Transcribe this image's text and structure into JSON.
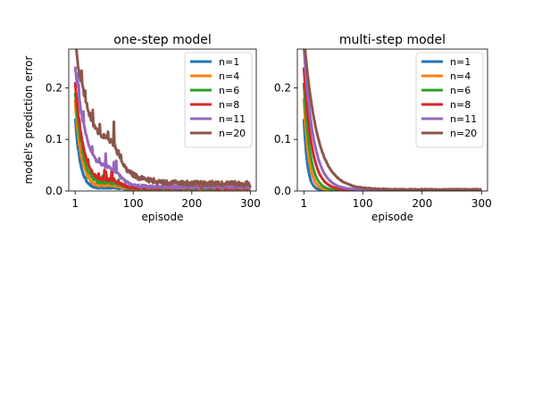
{
  "chart_data": [
    {
      "type": "line",
      "title": "one-step model",
      "xlabel": "episode",
      "ylabel": "model's prediction error",
      "xlim": [
        -10,
        310
      ],
      "ylim": [
        0,
        0.275
      ],
      "xticks": [
        1,
        100,
        200,
        300
      ],
      "xtick_labels": [
        "1",
        "100",
        "200",
        "300"
      ],
      "yticks": [
        0.0,
        0.1,
        0.2
      ],
      "ytick_labels": [
        "0.0",
        "0.1",
        "0.2"
      ],
      "grid": false,
      "legend": "top-right",
      "series": [
        {
          "name": "n=1",
          "color": "#1f77b4",
          "start": 0.14,
          "plateau": 0.003,
          "tau": 9,
          "noise": 0.001,
          "bump": 0.003
        },
        {
          "name": "n=4",
          "color": "#ff7f0e",
          "start": 0.17,
          "plateau": 0.004,
          "tau": 11,
          "noise": 0.0015,
          "bump": 0.006
        },
        {
          "name": "n=6",
          "color": "#2ca02c",
          "start": 0.19,
          "plateau": 0.005,
          "tau": 13,
          "noise": 0.002,
          "bump": 0.009
        },
        {
          "name": "n=8",
          "color": "#d62728",
          "start": 0.21,
          "plateau": 0.006,
          "tau": 15,
          "noise": 0.0025,
          "bump": 0.012
        },
        {
          "name": "n=11",
          "color": "#9467bd",
          "start": 0.24,
          "plateau": 0.008,
          "tau": 22,
          "noise": 0.003,
          "bump": 0.022
        },
        {
          "name": "n=20",
          "color": "#8c564b",
          "start": 0.28,
          "plateau": 0.014,
          "tau": 35,
          "noise": 0.005,
          "bump": 0.035
        }
      ]
    },
    {
      "type": "line",
      "title": "multi-step model",
      "xlabel": "episode",
      "ylabel": "",
      "xlim": [
        -10,
        310
      ],
      "ylim": [
        0,
        0.275
      ],
      "xticks": [
        1,
        100,
        200,
        300
      ],
      "xtick_labels": [
        "1",
        "100",
        "200",
        "300"
      ],
      "yticks": [
        0.0,
        0.1,
        0.2
      ],
      "ytick_labels": [
        "0.0",
        "0.1",
        "0.2"
      ],
      "grid": false,
      "legend": "top-right",
      "series": [
        {
          "name": "n=1",
          "color": "#1f77b4",
          "start": 0.14,
          "plateau": 0.001,
          "tau": 6,
          "noise": 0.0005,
          "bump": 0
        },
        {
          "name": "n=4",
          "color": "#ff7f0e",
          "start": 0.18,
          "plateau": 0.001,
          "tau": 8,
          "noise": 0.0005,
          "bump": 0
        },
        {
          "name": "n=6",
          "color": "#2ca02c",
          "start": 0.21,
          "plateau": 0.001,
          "tau": 10,
          "noise": 0.0005,
          "bump": 0
        },
        {
          "name": "n=8",
          "color": "#d62728",
          "start": 0.24,
          "plateau": 0.002,
          "tau": 13,
          "noise": 0.0005,
          "bump": 0
        },
        {
          "name": "n=11",
          "color": "#9467bd",
          "start": 0.28,
          "plateau": 0.002,
          "tau": 16,
          "noise": 0.0005,
          "bump": 0
        },
        {
          "name": "n=20",
          "color": "#8c564b",
          "start": 0.3,
          "plateau": 0.003,
          "tau": 22,
          "noise": 0.0008,
          "bump": 0
        }
      ]
    }
  ]
}
